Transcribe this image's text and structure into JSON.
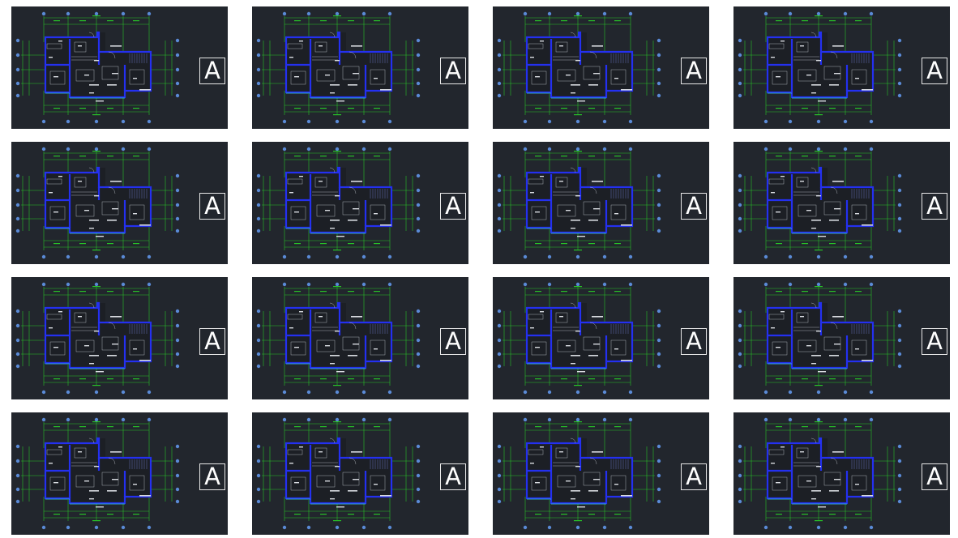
{
  "colors": {
    "tile_background": "#22262d",
    "wall": "#2430f0",
    "dimension": "#27c227",
    "axis_bubble": "#5a8ad6",
    "fixture": "#c8ccd4",
    "label": "#ffffff"
  },
  "thumbnails": [
    {
      "letter": "A"
    },
    {
      "letter": "A"
    },
    {
      "letter": "A"
    },
    {
      "letter": "A"
    },
    {
      "letter": "A"
    },
    {
      "letter": "A"
    },
    {
      "letter": "A"
    },
    {
      "letter": "A"
    },
    {
      "letter": "A"
    },
    {
      "letter": "A"
    },
    {
      "letter": "A"
    },
    {
      "letter": "A"
    },
    {
      "letter": "A"
    },
    {
      "letter": "A"
    },
    {
      "letter": "A"
    },
    {
      "letter": "A"
    }
  ]
}
